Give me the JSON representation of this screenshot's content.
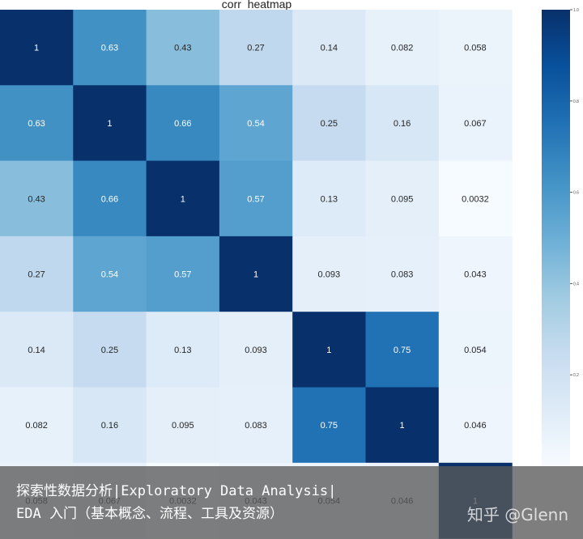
{
  "chart_data": {
    "type": "heatmap",
    "title": "corr_heatmap",
    "rows": 7,
    "cols": 7,
    "matrix": [
      [
        "1",
        "0.63",
        "0.43",
        "0.27",
        "0.14",
        "0.082",
        "0.058"
      ],
      [
        "0.63",
        "1",
        "0.66",
        "0.54",
        "0.25",
        "0.16",
        "0.067"
      ],
      [
        "0.43",
        "0.66",
        "1",
        "0.57",
        "0.13",
        "0.095",
        "0.0032"
      ],
      [
        "0.27",
        "0.54",
        "0.57",
        "1",
        "0.093",
        "0.083",
        "0.043"
      ],
      [
        "0.14",
        "0.25",
        "0.13",
        "0.093",
        "1",
        "0.75",
        "0.054"
      ],
      [
        "0.082",
        "0.16",
        "0.095",
        "0.083",
        "0.75",
        "1",
        "0.046"
      ],
      [
        "0.058",
        "0.067",
        "0.0032",
        "0.043",
        "0.054",
        "0.046",
        "1"
      ]
    ],
    "colorbar_ticks": [
      "1.0",
      "0.8",
      "0.6",
      "0.4",
      "0.2"
    ],
    "colormap": [
      "#f7fbff",
      "#deebf7",
      "#c6dbef",
      "#9ecae1",
      "#6baed6",
      "#4292c6",
      "#2171b5",
      "#08519c",
      "#08306b"
    ]
  },
  "overlay": {
    "line1": "探索性数据分析|Exploratory Data Analysis|",
    "line2": "EDA 入门（基本概念、流程、工具及资源）",
    "watermark": "知乎 @Glenn"
  }
}
